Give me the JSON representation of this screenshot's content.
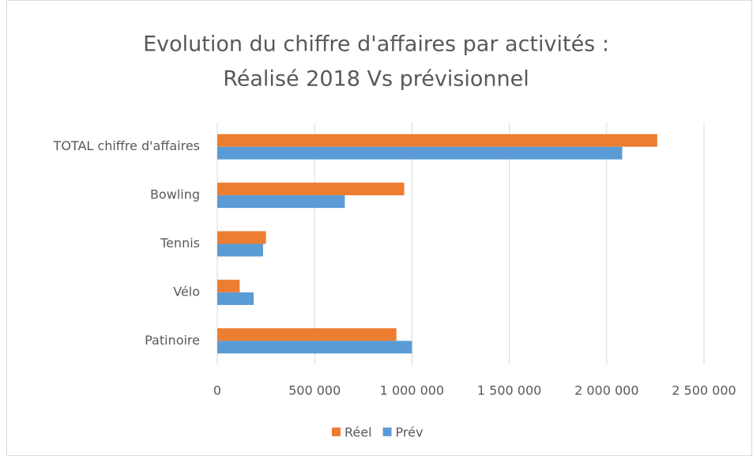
{
  "chart_data": {
    "type": "barh",
    "title": [
      "Evolution du chiffre d'affaires par activités :",
      "Réalisé 2018 Vs prévisionnel"
    ],
    "categories": [
      "TOTAL chiffre d'affaires",
      "Bowling",
      "Tennis",
      "Vélo",
      "Patinoire"
    ],
    "series": [
      {
        "name": "Réel",
        "color": "#ed7d31",
        "values": [
          2260000,
          960000,
          250000,
          115000,
          920000
        ]
      },
      {
        "name": "Prév",
        "color": "#5b9bd5",
        "values": [
          2080000,
          655000,
          235000,
          187000,
          1000000
        ]
      }
    ],
    "xlim": [
      0,
      2500000
    ],
    "xticks": [
      0,
      {
        "value": 500000,
        "label": "500 000"
      },
      {
        "value": 1000000,
        "label": "1 000 000"
      },
      {
        "value": 1500000,
        "label": "1 500 000"
      },
      {
        "value": 2000000,
        "label": "2 000 000"
      },
      {
        "value": 2500000,
        "label": "2 500 000"
      }
    ],
    "grid": true,
    "legend": "bottom"
  }
}
